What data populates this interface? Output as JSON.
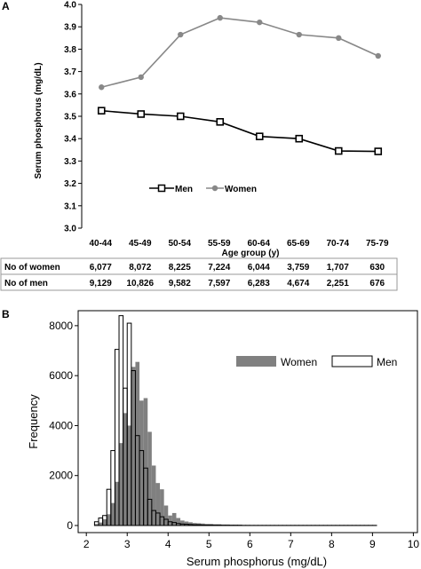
{
  "chart_data": [
    {
      "panel": "A",
      "type": "line",
      "xlabel": "Age group (y)",
      "ylabel": "Serum phosphorus (mg/dL)",
      "ylim": [
        3.0,
        4.0
      ],
      "yticks": [
        "3.0",
        "3.1",
        "3.2",
        "3.3",
        "3.4",
        "3.5",
        "3.6",
        "3.7",
        "3.8",
        "3.9",
        "4.0"
      ],
      "categories": [
        "40-44",
        "45-49",
        "50-54",
        "55-59",
        "60-64",
        "65-69",
        "70-74",
        "75-79"
      ],
      "grid": false,
      "legend_position": "middle",
      "series": [
        {
          "name": "Men",
          "color": "#000000",
          "marker": "hollow-square",
          "values": [
            3.525,
            3.51,
            3.5,
            3.475,
            3.41,
            3.4,
            3.345,
            3.343
          ]
        },
        {
          "name": "Women",
          "color": "#888888",
          "marker": "filled-circle",
          "values": [
            3.63,
            3.675,
            3.865,
            3.94,
            3.92,
            3.865,
            3.85,
            3.77
          ]
        }
      ],
      "table": {
        "rows": [
          {
            "label": "No of women",
            "values": [
              "6,077",
              "8,072",
              "8,225",
              "7,224",
              "6,044",
              "3,759",
              "1,707",
              "630"
            ]
          },
          {
            "label": "No of men",
            "values": [
              "9,129",
              "10,826",
              "9,582",
              "7,597",
              "6,283",
              "4,674",
              "2,251",
              "676"
            ]
          }
        ]
      }
    },
    {
      "panel": "B",
      "type": "bar",
      "subtype": "histogram",
      "xlabel": "Serum phosphorus (mg/dL)",
      "ylabel": "Frequency",
      "xlim": [
        1.8,
        10.1
      ],
      "ylim": [
        0,
        8600
      ],
      "xticks": [
        "2",
        "3",
        "4",
        "5",
        "6",
        "7",
        "8",
        "9",
        "10"
      ],
      "yticks": [
        "0",
        "2000",
        "4000",
        "6000",
        "8000"
      ],
      "bin_start": 2.1,
      "bin_width": 0.1,
      "grid": false,
      "legend_position": "top-right",
      "series": [
        {
          "name": "Women",
          "color": "#808080",
          "style": "filled",
          "values": [
            0,
            60,
            120,
            250,
            450,
            900,
            1750,
            3300,
            4500,
            4000,
            6350,
            6550,
            5000,
            5100,
            3750,
            2400,
            1700,
            1450,
            800,
            400,
            500,
            300,
            200,
            160,
            130,
            100,
            90,
            80,
            60,
            60,
            50,
            50,
            40,
            40,
            30,
            30,
            25,
            20,
            20,
            15,
            15,
            10,
            10,
            10,
            10,
            10,
            5,
            5,
            5,
            5,
            5,
            5,
            5,
            5,
            5,
            5,
            5,
            5,
            5,
            5,
            5,
            5,
            5,
            5,
            5,
            5,
            5,
            5,
            5,
            5
          ]
        },
        {
          "name": "Men",
          "color": "#000000",
          "style": "outline",
          "values": [
            0,
            150,
            300,
            400,
            1450,
            3000,
            7050,
            8400,
            5500,
            8100,
            6200,
            3600,
            3000,
            2300,
            1050,
            600,
            500,
            350,
            250,
            150,
            120,
            80,
            60,
            50,
            40,
            30,
            30,
            20,
            20,
            20,
            15,
            15,
            10,
            10,
            10,
            10,
            10,
            5,
            5,
            5,
            5,
            5,
            5,
            5,
            5,
            5,
            5,
            5,
            5,
            5,
            5,
            5,
            5,
            5,
            5,
            5,
            5,
            5,
            5,
            5,
            5,
            5,
            5,
            5,
            5,
            5,
            5,
            5,
            5,
            5
          ]
        }
      ]
    }
  ]
}
